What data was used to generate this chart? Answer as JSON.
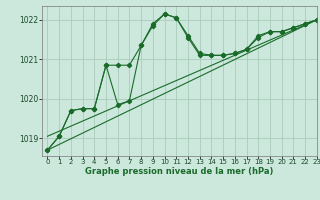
{
  "title": "Graphe pression niveau de la mer (hPa)",
  "background_color": "#cce8dc",
  "grid_color": "#aaccbb",
  "line_color": "#1a6b2a",
  "xlim": [
    -0.5,
    23
  ],
  "ylim": [
    1018.55,
    1022.35
  ],
  "yticks": [
    1019,
    1020,
    1021,
    1022
  ],
  "xticks": [
    0,
    1,
    2,
    3,
    4,
    5,
    6,
    7,
    8,
    9,
    10,
    11,
    12,
    13,
    14,
    15,
    16,
    17,
    18,
    19,
    20,
    21,
    22,
    23
  ],
  "series1_x": [
    0,
    1,
    2,
    3,
    4,
    5,
    6,
    7,
    8,
    9,
    10,
    11,
    12,
    13,
    14,
    15,
    16,
    17,
    18,
    19,
    20,
    21,
    22,
    23
  ],
  "series1_y": [
    1018.7,
    1019.05,
    1019.7,
    1019.75,
    1019.75,
    1020.85,
    1020.85,
    1020.85,
    1021.35,
    1021.9,
    1022.15,
    1022.05,
    1021.6,
    1021.15,
    1021.1,
    1021.1,
    1021.15,
    1021.25,
    1021.6,
    1021.7,
    1021.7,
    1021.8,
    1021.9,
    1022.0
  ],
  "series2_x": [
    0,
    1,
    2,
    3,
    4,
    5,
    6,
    7,
    8,
    9,
    10,
    11,
    12,
    13,
    14,
    15,
    16,
    17,
    18,
    19,
    20,
    21,
    22,
    23
  ],
  "series2_y": [
    1018.7,
    1019.05,
    1019.7,
    1019.75,
    1019.75,
    1020.85,
    1019.85,
    1019.95,
    1021.35,
    1021.85,
    1022.15,
    1022.05,
    1021.55,
    1021.1,
    1021.1,
    1021.1,
    1021.15,
    1021.25,
    1021.55,
    1021.7,
    1021.7,
    1021.8,
    1021.9,
    1022.0
  ],
  "trend1_x": [
    0,
    23
  ],
  "trend1_y": [
    1018.7,
    1022.0
  ],
  "trend2_x": [
    0,
    23
  ],
  "trend2_y": [
    1019.05,
    1022.0
  ]
}
